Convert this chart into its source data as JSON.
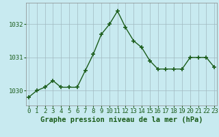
{
  "x": [
    0,
    1,
    2,
    3,
    4,
    5,
    6,
    7,
    8,
    9,
    10,
    11,
    12,
    13,
    14,
    15,
    16,
    17,
    18,
    19,
    20,
    21,
    22,
    23
  ],
  "y": [
    1029.8,
    1030.0,
    1030.1,
    1030.3,
    1030.1,
    1030.1,
    1030.1,
    1030.6,
    1031.1,
    1031.7,
    1032.0,
    1032.4,
    1031.9,
    1031.5,
    1031.3,
    1030.9,
    1030.65,
    1030.65,
    1030.65,
    1030.65,
    1031.0,
    1031.0,
    1031.0,
    1030.7
  ],
  "line_color": "#1a5c1a",
  "marker": "+",
  "marker_size": 5,
  "marker_color": "#1a5c1a",
  "bg_color": "#c8eaf0",
  "grid_color": "#a0b8c0",
  "ylabel_ticks": [
    1030,
    1031,
    1032
  ],
  "xlabel_ticks": [
    0,
    1,
    2,
    3,
    4,
    5,
    6,
    7,
    8,
    9,
    10,
    11,
    12,
    13,
    14,
    15,
    16,
    17,
    18,
    19,
    20,
    21,
    22,
    23
  ],
  "xlabel_label": "Graphe pression niveau de la mer (hPa)",
  "xlim": [
    -0.3,
    23.3
  ],
  "ylim": [
    1029.55,
    1032.65
  ],
  "tick_fontsize": 6.5,
  "label_fontsize": 7.5,
  "text_color": "#1a5c1a",
  "spine_color": "#888888"
}
